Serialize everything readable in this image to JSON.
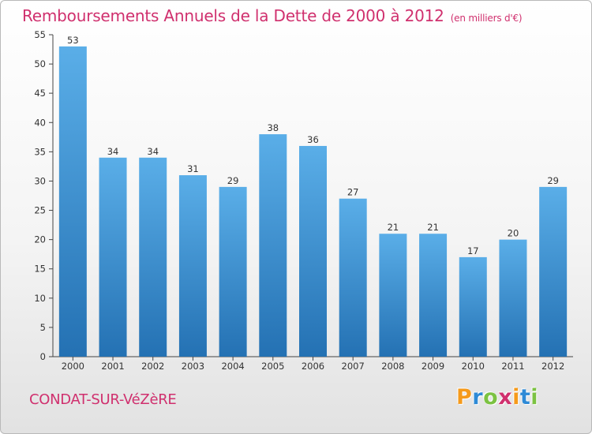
{
  "page": {
    "title": "Remboursements Annuels de la Dette de 2000 à 2012",
    "subtitle": "(en milliers d'€)",
    "commune": "CONDAT-SUR-VéZèRE",
    "brand": "Proxiti"
  },
  "colors": {
    "accent": "#d0306e",
    "bar_top": "#5aaee8",
    "bar_bottom": "#2471b3",
    "brand_letters": [
      "#f59a1b",
      "#2e8ad6",
      "#7cc242",
      "#d0306e",
      "#f59a1b",
      "#2e8ad6",
      "#7cc242"
    ]
  },
  "chart_data": {
    "type": "bar",
    "categories": [
      "2000",
      "2001",
      "2002",
      "2003",
      "2004",
      "2005",
      "2006",
      "2007",
      "2008",
      "2009",
      "2010",
      "2011",
      "2012"
    ],
    "values": [
      53,
      34,
      34,
      31,
      29,
      38,
      36,
      27,
      21,
      21,
      17,
      20,
      29
    ],
    "title": "Remboursements Annuels de la Dette de 2000 à 2012",
    "subtitle": "(en milliers d'€)",
    "ylim": [
      0,
      55
    ],
    "yticks": [
      0,
      5,
      10,
      15,
      20,
      25,
      30,
      35,
      40,
      45,
      50,
      55
    ],
    "grid": false,
    "data_labels": true
  }
}
